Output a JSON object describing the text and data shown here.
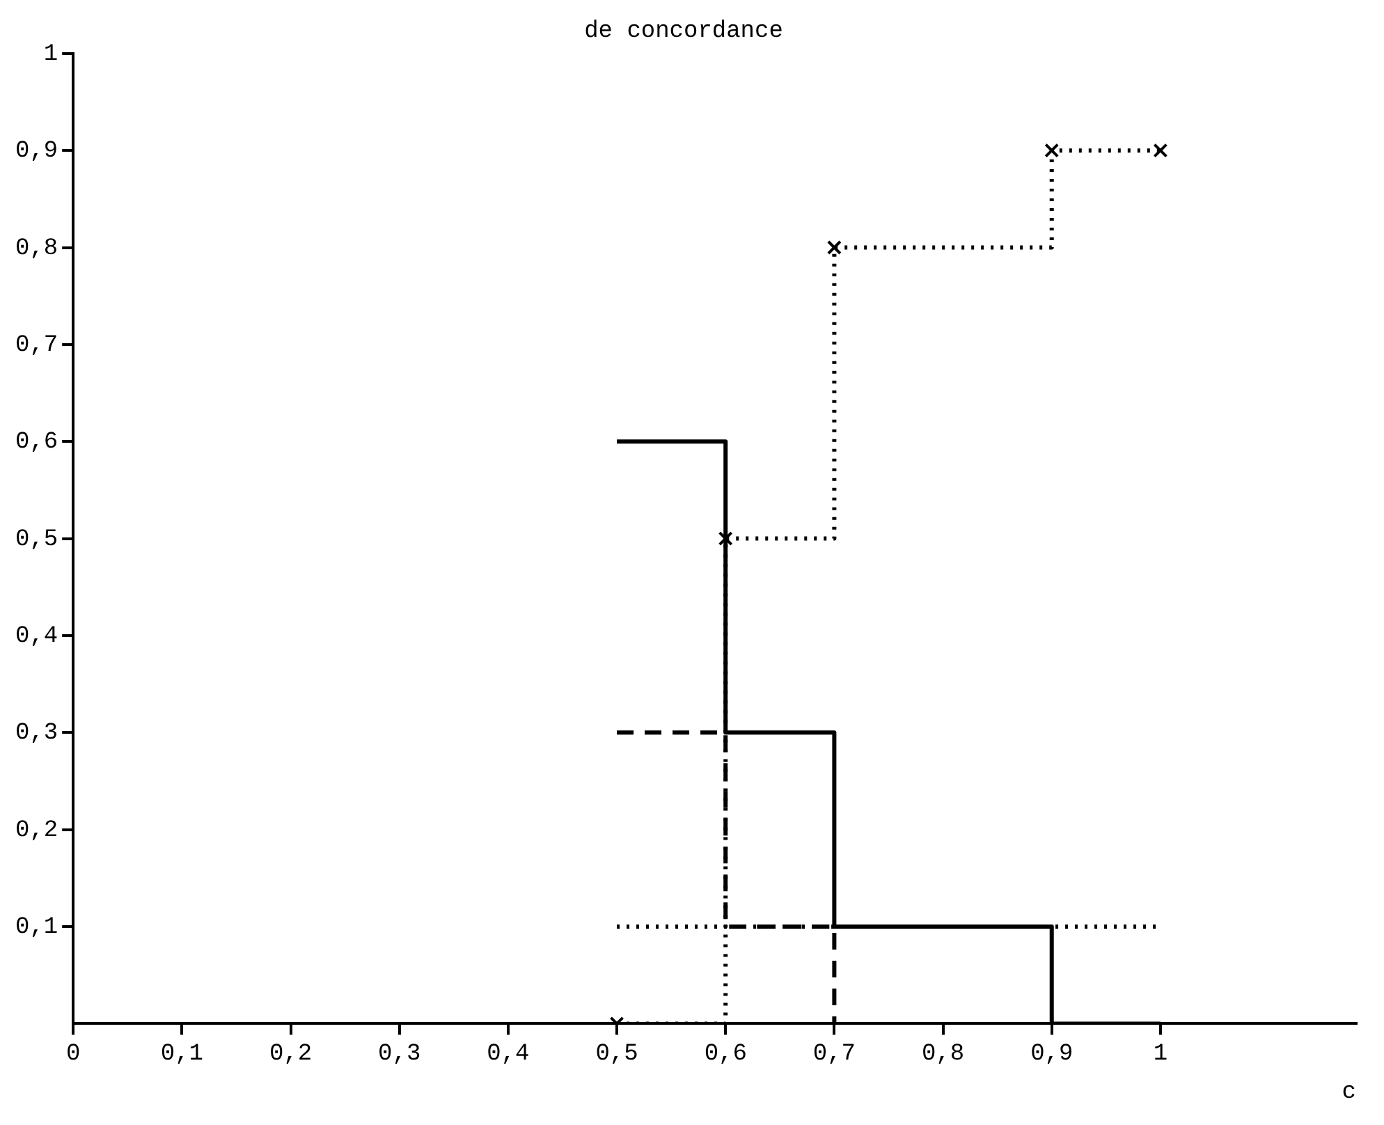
{
  "chart_data": {
    "type": "step",
    "title": "de concordance",
    "xlabel": "c",
    "xlim": [
      0,
      1.18
    ],
    "ylim": [
      0,
      1
    ],
    "xticks": [
      0,
      {
        "value": 0.1,
        "label": "0,1"
      },
      {
        "value": 0.2,
        "label": "0,2"
      },
      {
        "value": 0.3,
        "label": "0,3"
      },
      {
        "value": 0.4,
        "label": "0,4"
      },
      {
        "value": 0.5,
        "label": "0,5"
      },
      {
        "value": 0.6,
        "label": "0,6"
      },
      {
        "value": 0.7,
        "label": "0,7"
      },
      {
        "value": 0.8,
        "label": "0,8"
      },
      {
        "value": 0.9,
        "label": "0,9"
      },
      1
    ],
    "yticks": [
      {
        "value": 0.1,
        "label": "0,1"
      },
      {
        "value": 0.2,
        "label": "0,2"
      },
      {
        "value": 0.3,
        "label": "0,3"
      },
      {
        "value": 0.4,
        "label": "0,4"
      },
      {
        "value": 0.5,
        "label": "0,5"
      },
      {
        "value": 0.6,
        "label": "0,6"
      },
      {
        "value": 0.7,
        "label": "0,7"
      },
      {
        "value": 0.8,
        "label": "0,8"
      },
      {
        "value": 0.9,
        "label": "0,9"
      },
      1
    ],
    "grid": false,
    "legend": false,
    "series": [
      {
        "color": "#000000",
        "line_style": "solid",
        "marker": "none",
        "x": [
          0.5,
          0.6,
          0.7,
          0.9,
          1
        ],
        "values": [
          0.6,
          0.3,
          0.1,
          0,
          0
        ]
      },
      {
        "color": "#000000",
        "line_style": "dashed",
        "marker": "none",
        "x": [
          0.5,
          0.6,
          0.7
        ],
        "values": [
          0.3,
          0.1,
          0
        ]
      },
      {
        "color": "#000000",
        "line_style": "dotted",
        "marker": "none",
        "x": [
          0.5,
          1
        ],
        "values": [
          0.1,
          0.1
        ]
      },
      {
        "color": "#000000",
        "line_style": "dotted",
        "marker": "cross",
        "x": [
          0.5,
          0.6,
          0.7,
          0.9,
          1
        ],
        "values": [
          0,
          0.5,
          0.8,
          0.9,
          0.9
        ]
      }
    ]
  }
}
